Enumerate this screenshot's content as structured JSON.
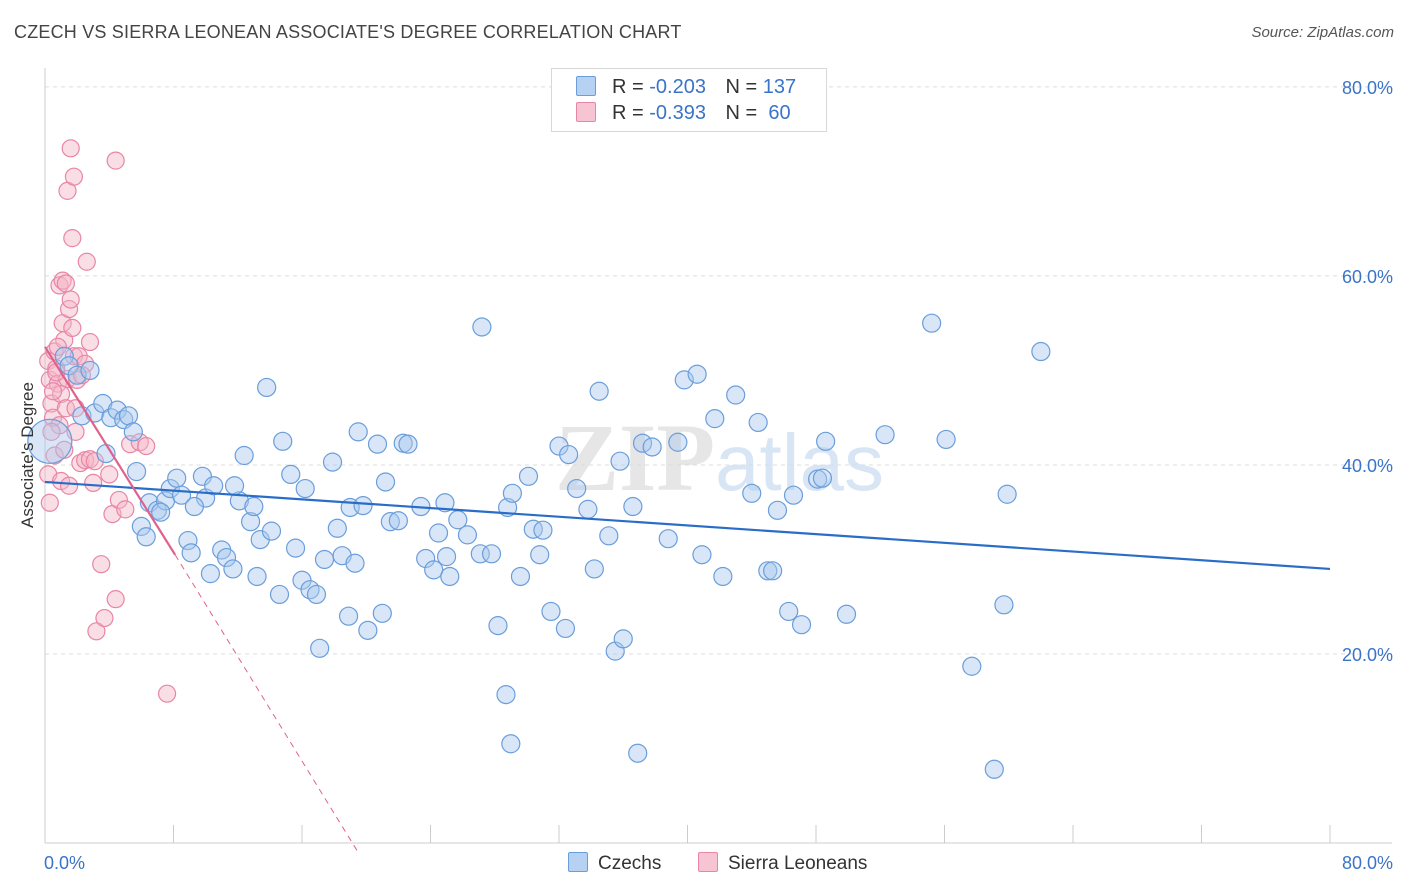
{
  "header": {
    "title": "CZECH VS SIERRA LEONEAN ASSOCIATE'S DEGREE CORRELATION CHART",
    "source": "Source: ZipAtlas.com"
  },
  "legend": {
    "rows": [
      {
        "r_label": "R =",
        "r_value": "-0.203",
        "n_label": "N =",
        "n_value": "137"
      },
      {
        "r_label": "R =",
        "r_value": "-0.393",
        "n_label": "N =",
        "n_value": " 60"
      }
    ]
  },
  "bottom_legend": {
    "czechs": "Czechs",
    "sierra": "Sierra Leoneans"
  },
  "watermark": {
    "zip": "ZIP",
    "atlas": "atlas"
  },
  "colors": {
    "czech_fill": "#a9c8ee",
    "czech_stroke": "#6a9edb",
    "czech_line": "#2a6dc9",
    "sierra_fill": "#f4b6c8",
    "sierra_stroke": "#e886a6",
    "sierra_line": "#e0628c",
    "axis_label": "#3a74c8",
    "grid": "#dddddd"
  },
  "chart_data": {
    "type": "scatter",
    "title": "CZECH VS SIERRA LEONEAN ASSOCIATE'S DEGREE CORRELATION CHART",
    "ylabel": "Associate's Degree",
    "xlim": [
      0,
      80
    ],
    "ylim": [
      0,
      82
    ],
    "x_tick_labels": [
      "0.0%",
      "80.0%"
    ],
    "y_ticks": [
      20,
      40,
      60,
      80
    ],
    "y_tick_labels": [
      "20.0%",
      "40.0%",
      "60.0%",
      "80.0%"
    ],
    "series": [
      {
        "name": "Czechs",
        "trend": {
          "x0": 0,
          "y0": 38.2,
          "x1": 80,
          "y1": 29.0
        },
        "points": [
          [
            0.3,
            42.5
          ],
          [
            1.2,
            51.5
          ],
          [
            1.5,
            50.5
          ],
          [
            2.0,
            49.5
          ],
          [
            2.8,
            50.0
          ],
          [
            2.3,
            45.2
          ],
          [
            3.1,
            45.5
          ],
          [
            3.6,
            46.5
          ],
          [
            4.1,
            45.0
          ],
          [
            4.5,
            45.8
          ],
          [
            4.9,
            44.8
          ],
          [
            5.2,
            45.2
          ],
          [
            5.5,
            43.5
          ],
          [
            3.8,
            41.2
          ],
          [
            5.7,
            39.3
          ],
          [
            6.5,
            36.0
          ],
          [
            7.0,
            35.2
          ],
          [
            7.5,
            36.2
          ],
          [
            7.8,
            37.5
          ],
          [
            8.2,
            38.6
          ],
          [
            8.5,
            36.8
          ],
          [
            6.0,
            33.5
          ],
          [
            6.3,
            32.4
          ],
          [
            8.9,
            32.0
          ],
          [
            9.1,
            30.7
          ],
          [
            9.8,
            38.8
          ],
          [
            10.0,
            36.5
          ],
          [
            10.5,
            37.8
          ],
          [
            11.0,
            31.0
          ],
          [
            11.3,
            30.2
          ],
          [
            11.7,
            29.0
          ],
          [
            10.3,
            28.5
          ],
          [
            12.1,
            36.2
          ],
          [
            12.4,
            41.0
          ],
          [
            12.8,
            34.0
          ],
          [
            13.2,
            28.2
          ],
          [
            13.4,
            32.1
          ],
          [
            13.8,
            48.2
          ],
          [
            14.1,
            33.0
          ],
          [
            14.6,
            26.3
          ],
          [
            14.8,
            42.5
          ],
          [
            15.3,
            39.0
          ],
          [
            15.6,
            31.2
          ],
          [
            16.0,
            27.8
          ],
          [
            16.2,
            37.5
          ],
          [
            16.5,
            26.8
          ],
          [
            16.9,
            26.3
          ],
          [
            17.4,
            30.0
          ],
          [
            17.9,
            40.3
          ],
          [
            18.2,
            33.3
          ],
          [
            18.5,
            30.4
          ],
          [
            19.0,
            35.5
          ],
          [
            19.3,
            29.6
          ],
          [
            19.8,
            35.7
          ],
          [
            20.1,
            22.5
          ],
          [
            17.1,
            20.6
          ],
          [
            18.9,
            24.0
          ],
          [
            20.7,
            42.2
          ],
          [
            21.2,
            38.2
          ],
          [
            21.5,
            34.0
          ],
          [
            22.0,
            34.1
          ],
          [
            22.3,
            42.3
          ],
          [
            22.6,
            42.2
          ],
          [
            21.0,
            24.3
          ],
          [
            23.4,
            35.6
          ],
          [
            23.7,
            30.1
          ],
          [
            24.2,
            28.9
          ],
          [
            24.5,
            32.8
          ],
          [
            24.9,
            36.0
          ],
          [
            25.0,
            30.3
          ],
          [
            25.7,
            34.2
          ],
          [
            25.2,
            28.2
          ],
          [
            26.3,
            32.6
          ],
          [
            27.1,
            30.6
          ],
          [
            27.8,
            30.6
          ],
          [
            28.2,
            23.0
          ],
          [
            28.8,
            35.5
          ],
          [
            29.1,
            37.0
          ],
          [
            29.6,
            28.2
          ],
          [
            30.1,
            38.8
          ],
          [
            30.4,
            33.2
          ],
          [
            30.8,
            30.5
          ],
          [
            31.0,
            33.1
          ],
          [
            31.5,
            24.5
          ],
          [
            32.0,
            42.0
          ],
          [
            32.4,
            22.7
          ],
          [
            32.6,
            41.1
          ],
          [
            33.1,
            37.5
          ],
          [
            33.8,
            35.3
          ],
          [
            34.2,
            29.0
          ],
          [
            34.5,
            47.8
          ],
          [
            35.1,
            32.5
          ],
          [
            35.5,
            20.3
          ],
          [
            35.8,
            40.4
          ],
          [
            36.0,
            21.6
          ],
          [
            36.6,
            35.6
          ],
          [
            37.2,
            42.3
          ],
          [
            37.8,
            41.9
          ],
          [
            38.8,
            32.2
          ],
          [
            39.4,
            42.4
          ],
          [
            39.8,
            49.0
          ],
          [
            40.6,
            49.6
          ],
          [
            40.9,
            30.5
          ],
          [
            41.7,
            44.9
          ],
          [
            42.2,
            28.2
          ],
          [
            43.0,
            47.4
          ],
          [
            44.0,
            37.0
          ],
          [
            44.4,
            44.5
          ],
          [
            45.0,
            28.8
          ],
          [
            45.3,
            28.8
          ],
          [
            45.6,
            35.2
          ],
          [
            46.3,
            24.5
          ],
          [
            46.6,
            36.8
          ],
          [
            47.1,
            23.1
          ],
          [
            48.1,
            38.5
          ],
          [
            48.6,
            42.5
          ],
          [
            48.4,
            38.6
          ],
          [
            49.9,
            24.2
          ],
          [
            52.3,
            43.2
          ],
          [
            55.2,
            55.0
          ],
          [
            56.1,
            42.7
          ],
          [
            57.7,
            18.7
          ],
          [
            59.1,
            7.8
          ],
          [
            59.7,
            25.2
          ],
          [
            59.9,
            36.9
          ],
          [
            62.0,
            52.0
          ],
          [
            27.2,
            54.6
          ],
          [
            36.9,
            9.5
          ],
          [
            29.0,
            10.5
          ],
          [
            28.7,
            15.7
          ],
          [
            19.5,
            43.5
          ],
          [
            9.3,
            35.6
          ],
          [
            11.8,
            37.8
          ],
          [
            13.0,
            35.6
          ],
          [
            7.2,
            35.0
          ]
        ]
      },
      {
        "name": "Sierra Leoneans",
        "trend": {
          "x0": 0,
          "y0": 52.5,
          "x1": 8.1,
          "y1": 30.5,
          "dash_x1": 19.5,
          "dash_y1": -1.0
        },
        "points": [
          [
            0.2,
            51.0
          ],
          [
            0.3,
            49.0
          ],
          [
            0.4,
            46.5
          ],
          [
            0.5,
            45.0
          ],
          [
            0.6,
            52.0
          ],
          [
            0.7,
            50.2
          ],
          [
            0.8,
            48.6
          ],
          [
            0.9,
            44.2
          ],
          [
            1.0,
            47.5
          ],
          [
            1.1,
            55.0
          ],
          [
            1.2,
            53.2
          ],
          [
            1.3,
            46.0
          ],
          [
            1.4,
            49.1
          ],
          [
            1.5,
            56.5
          ],
          [
            1.6,
            57.5
          ],
          [
            1.7,
            54.5
          ],
          [
            1.8,
            51.5
          ],
          [
            0.9,
            59.0
          ],
          [
            1.1,
            59.5
          ],
          [
            1.3,
            59.2
          ],
          [
            1.6,
            73.5
          ],
          [
            1.4,
            69.0
          ],
          [
            1.8,
            70.5
          ],
          [
            1.7,
            64.0
          ],
          [
            2.6,
            61.5
          ],
          [
            4.4,
            72.2
          ],
          [
            2.1,
            51.5
          ],
          [
            2.5,
            50.7
          ],
          [
            2.8,
            53.0
          ],
          [
            1.9,
            43.5
          ],
          [
            2.2,
            40.2
          ],
          [
            2.5,
            40.5
          ],
          [
            2.8,
            40.6
          ],
          [
            3.1,
            40.4
          ],
          [
            3.0,
            38.1
          ],
          [
            3.5,
            29.5
          ],
          [
            3.2,
            22.4
          ],
          [
            3.7,
            23.8
          ],
          [
            4.2,
            34.8
          ],
          [
            4.6,
            36.3
          ],
          [
            5.0,
            35.3
          ],
          [
            4.0,
            39.0
          ],
          [
            5.3,
            42.2
          ],
          [
            5.9,
            42.4
          ],
          [
            6.3,
            42.0
          ],
          [
            4.4,
            25.8
          ],
          [
            7.6,
            15.8
          ],
          [
            0.3,
            36.0
          ],
          [
            0.2,
            39.0
          ],
          [
            0.6,
            41.0
          ],
          [
            1.2,
            41.6
          ],
          [
            1.9,
            46.0
          ],
          [
            0.5,
            47.8
          ],
          [
            0.7,
            49.8
          ],
          [
            0.4,
            43.5
          ],
          [
            1.0,
            38.3
          ],
          [
            2.0,
            49.0
          ],
          [
            1.5,
            37.8
          ],
          [
            2.3,
            49.5
          ],
          [
            0.8,
            52.5
          ]
        ]
      }
    ]
  }
}
